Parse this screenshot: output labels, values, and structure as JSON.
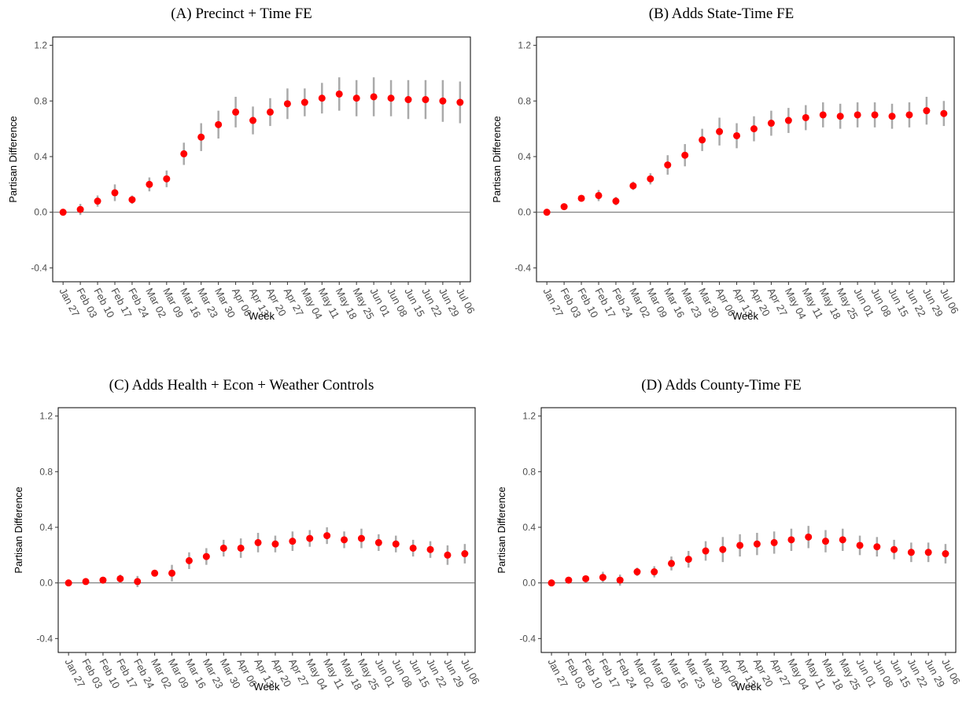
{
  "chart_data": [
    {
      "type": "errorbar",
      "title": "(A) Precinct + Time FE",
      "x_label": "Week",
      "y_label": "Partisan Difference",
      "categories": [
        "Jan 27",
        "Feb 03",
        "Feb 10",
        "Feb 17",
        "Feb 24",
        "Mar 02",
        "Mar 09",
        "Mar 16",
        "Mar 23",
        "Mar 30",
        "Apr 06",
        "Apr 13",
        "Apr 20",
        "Apr 27",
        "May 04",
        "May 11",
        "May 18",
        "May 25",
        "Jun 01",
        "Jun 08",
        "Jun 15",
        "Jun 22",
        "Jun 29",
        "Jul 06"
      ],
      "values": [
        0,
        0.02,
        0.08,
        0.14,
        0.09,
        0.2,
        0.24,
        0.42,
        0.54,
        0.63,
        0.72,
        0.66,
        0.72,
        0.78,
        0.79,
        0.82,
        0.85,
        0.82,
        0.83,
        0.82,
        0.81,
        0.81,
        0.8,
        0.79
      ],
      "errors": [
        0,
        0.04,
        0.04,
        0.06,
        0.03,
        0.05,
        0.06,
        0.08,
        0.1,
        0.1,
        0.11,
        0.1,
        0.1,
        0.11,
        0.1,
        0.11,
        0.12,
        0.13,
        0.14,
        0.13,
        0.14,
        0.14,
        0.15,
        0.15
      ],
      "color": "#ff0000",
      "error_color": "#aaaaaa",
      "hline": 0,
      "ylim": [
        -0.5,
        1.26
      ],
      "yticks": [
        -0.4,
        {
          "value": 0,
          "label": "0.0"
        },
        0.4,
        0.8,
        1.2
      ]
    },
    {
      "type": "errorbar",
      "title": "(B) Adds State-Time FE",
      "x_label": "Week",
      "y_label": "Partisan Difference",
      "categories": [
        "Jan 27",
        "Feb 03",
        "Feb 10",
        "Feb 17",
        "Feb 24",
        "Mar 02",
        "Mar 09",
        "Mar 16",
        "Mar 23",
        "Mar 30",
        "Apr 06",
        "Apr 13",
        "Apr 20",
        "Apr 27",
        "May 04",
        "May 11",
        "May 18",
        "May 25",
        "Jun 01",
        "Jun 08",
        "Jun 15",
        "Jun 22",
        "Jun 29",
        "Jul 06"
      ],
      "values": [
        0,
        0.04,
        0.1,
        0.12,
        0.08,
        0.19,
        0.24,
        0.34,
        0.41,
        0.52,
        0.58,
        0.55,
        0.6,
        0.64,
        0.66,
        0.68,
        0.7,
        0.69,
        0.7,
        0.7,
        0.69,
        0.7,
        0.73,
        0.71
      ],
      "errors": [
        0,
        0.02,
        0.02,
        0.04,
        0.03,
        0.03,
        0.04,
        0.07,
        0.08,
        0.08,
        0.1,
        0.09,
        0.09,
        0.09,
        0.09,
        0.09,
        0.09,
        0.09,
        0.09,
        0.09,
        0.09,
        0.09,
        0.1,
        0.09
      ],
      "color": "#ff0000",
      "error_color": "#aaaaaa",
      "hline": 0,
      "ylim": [
        -0.5,
        1.26
      ],
      "yticks": [
        -0.4,
        {
          "value": 0,
          "label": "0.0"
        },
        0.4,
        0.8,
        1.2
      ]
    },
    {
      "type": "errorbar",
      "title": "(C) Adds Health + Econ + Weather Controls",
      "x_label": "Week",
      "y_label": "Partisan Difference",
      "categories": [
        "Jan 27",
        "Feb 03",
        "Feb 10",
        "Feb 17",
        "Feb 24",
        "Mar 02",
        "Mar 09",
        "Mar 16",
        "Mar 23",
        "Mar 30",
        "Apr 06",
        "Apr 13",
        "Apr 20",
        "Apr 27",
        "May 04",
        "May 11",
        "May 18",
        "May 25",
        "Jun 01",
        "Jun 08",
        "Jun 15",
        "Jun 22",
        "Jun 29",
        "Jul 06"
      ],
      "values": [
        0,
        0.01,
        0.02,
        0.03,
        0.01,
        0.07,
        0.07,
        0.16,
        0.19,
        0.25,
        0.25,
        0.29,
        0.28,
        0.3,
        0.32,
        0.34,
        0.31,
        0.32,
        0.29,
        0.28,
        0.25,
        0.24,
        0.2,
        0.21
      ],
      "errors": [
        0,
        0.01,
        0.02,
        0.03,
        0.04,
        0.02,
        0.06,
        0.06,
        0.06,
        0.06,
        0.07,
        0.07,
        0.06,
        0.07,
        0.06,
        0.06,
        0.06,
        0.07,
        0.06,
        0.06,
        0.06,
        0.06,
        0.07,
        0.07
      ],
      "color": "#ff0000",
      "error_color": "#aaaaaa",
      "hline": 0,
      "ylim": [
        -0.5,
        1.26
      ],
      "yticks": [
        -0.4,
        {
          "value": 0,
          "label": "0.0"
        },
        0.4,
        0.8,
        1.2
      ]
    },
    {
      "type": "errorbar",
      "title": "(D) Adds County-Time FE",
      "x_label": "Week",
      "y_label": "Partisan Difference",
      "categories": [
        "Jan 27",
        "Feb 03",
        "Feb 10",
        "Feb 17",
        "Feb 24",
        "Mar 02",
        "Mar 09",
        "Mar 16",
        "Mar 23",
        "Mar 30",
        "Apr 06",
        "Apr 13",
        "Apr 20",
        "Apr 27",
        "May 04",
        "May 11",
        "May 18",
        "May 25",
        "Jun 01",
        "Jun 08",
        "Jun 15",
        "Jun 22",
        "Jun 29",
        "Jul 06"
      ],
      "values": [
        0,
        0.02,
        0.03,
        0.04,
        0.02,
        0.08,
        0.08,
        0.14,
        0.17,
        0.23,
        0.24,
        0.27,
        0.28,
        0.29,
        0.31,
        0.33,
        0.3,
        0.31,
        0.27,
        0.26,
        0.24,
        0.22,
        0.22,
        0.21
      ],
      "errors": [
        0,
        0.02,
        0.02,
        0.04,
        0.04,
        0.03,
        0.04,
        0.05,
        0.06,
        0.07,
        0.09,
        0.08,
        0.08,
        0.08,
        0.08,
        0.08,
        0.08,
        0.08,
        0.07,
        0.07,
        0.07,
        0.07,
        0.07,
        0.07
      ],
      "color": "#ff0000",
      "error_color": "#aaaaaa",
      "hline": 0,
      "ylim": [
        -0.5,
        1.26
      ],
      "yticks": [
        -0.4,
        {
          "value": 0,
          "label": "0.0"
        },
        0.4,
        0.8,
        1.2
      ]
    }
  ]
}
